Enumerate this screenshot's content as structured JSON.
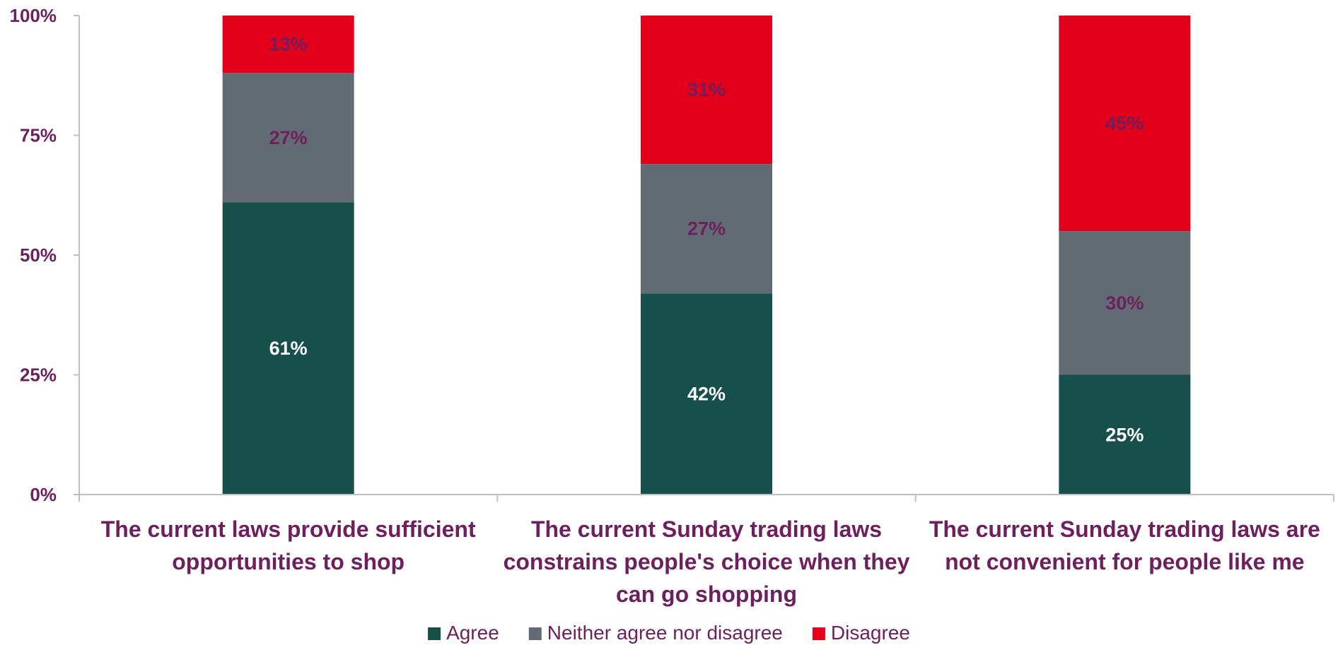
{
  "chart_data": {
    "type": "bar",
    "stacked": true,
    "categories": [
      [
        "The current laws provide sufficient",
        "opportunities to shop"
      ],
      [
        "The current Sunday trading laws",
        "constrains people's choice when they",
        "can go shopping"
      ],
      [
        "The current Sunday trading laws are",
        "not convenient for people like me"
      ]
    ],
    "series": [
      {
        "name": "Agree",
        "values": [
          61,
          42,
          25
        ],
        "labels": [
          "61%",
          "42%",
          "25%"
        ],
        "color": "#17504a",
        "label_color": "#ffffff"
      },
      {
        "name": "Neither agree nor disagree",
        "values": [
          27,
          27,
          30
        ],
        "labels": [
          "27%",
          "27%",
          "30%"
        ],
        "color": "#626b73",
        "label_color": "#6d1f5e"
      },
      {
        "name": "Disagree",
        "values": [
          13,
          31,
          45
        ],
        "labels": [
          "13%",
          "31%",
          "45%"
        ],
        "color": "#e2001a",
        "label_color": "#6d1f5e"
      }
    ],
    "ylim": [
      0,
      100
    ],
    "yticks": [
      "0%",
      "25%",
      "50%",
      "75%",
      "100%"
    ],
    "ytick_values": [
      0,
      25,
      50,
      75,
      100
    ],
    "grid": false,
    "legend_position": "bottom",
    "title": "",
    "xlabel": "",
    "ylabel": "",
    "colors": {
      "label_text": "#6d1f5e",
      "axis_line": "#bfbfbf"
    }
  }
}
